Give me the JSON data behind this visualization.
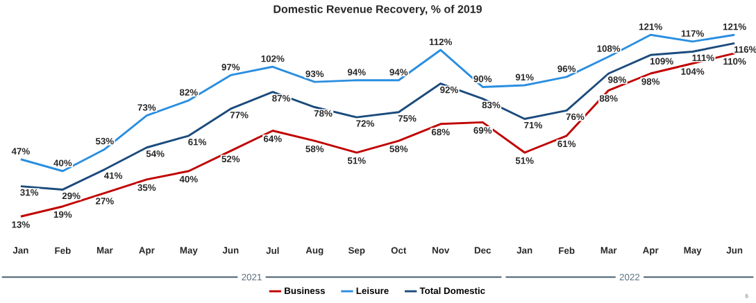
{
  "chart_data": {
    "type": "line",
    "title": "Domestic Revenue Recovery, % of 2019",
    "categories": [
      "Jan",
      "Feb",
      "Mar",
      "Apr",
      "May",
      "Jun",
      "Jul",
      "Aug",
      "Sep",
      "Oct",
      "Nov",
      "Dec",
      "Jan",
      "Feb",
      "Mar",
      "Apr",
      "May",
      "Jun"
    ],
    "series": [
      {
        "name": "Business",
        "color": "#c00000",
        "values": [
          13,
          19,
          27,
          35,
          40,
          52,
          64,
          58,
          51,
          58,
          68,
          69,
          51,
          61,
          88,
          98,
          104,
          110
        ],
        "value_labels": [
          "13%",
          "19%",
          "27%",
          "35%",
          "40%",
          "52%",
          "64%",
          "58%",
          "51%",
          "58%",
          "68%",
          "69%",
          "51%",
          "61%",
          "88%",
          "98%",
          "104%",
          "110%"
        ]
      },
      {
        "name": "Leisure",
        "color": "#2a8ee0",
        "values": [
          47,
          40,
          53,
          73,
          82,
          97,
          102,
          93,
          94,
          94,
          112,
          90,
          91,
          96,
          108,
          121,
          117,
          121
        ],
        "value_labels": [
          "47%",
          "40%",
          "53%",
          "73%",
          "82%",
          "97%",
          "102%",
          "93%",
          "94%",
          "94%",
          "112%",
          "90%",
          "91%",
          "96%",
          "108%",
          "121%",
          "117%",
          "121%"
        ]
      },
      {
        "name": "Total Domestic",
        "color": "#1b4b7c",
        "values": [
          31,
          29,
          41,
          54,
          61,
          77,
          87,
          78,
          72,
          75,
          92,
          83,
          71,
          76,
          98,
          109,
          111,
          116
        ],
        "value_labels": [
          "31%",
          "29%",
          "41%",
          "54%",
          "61%",
          "77%",
          "87%",
          "78%",
          "72%",
          "75%",
          "92%",
          "83%",
          "71%",
          "76%",
          "98%",
          "109%",
          "111%",
          "116%"
        ]
      }
    ],
    "legend": "bottom",
    "marker": "none",
    "line_style": "solid",
    "grid": false,
    "annotations": [
      "2021",
      "2022",
      "6"
    ]
  }
}
